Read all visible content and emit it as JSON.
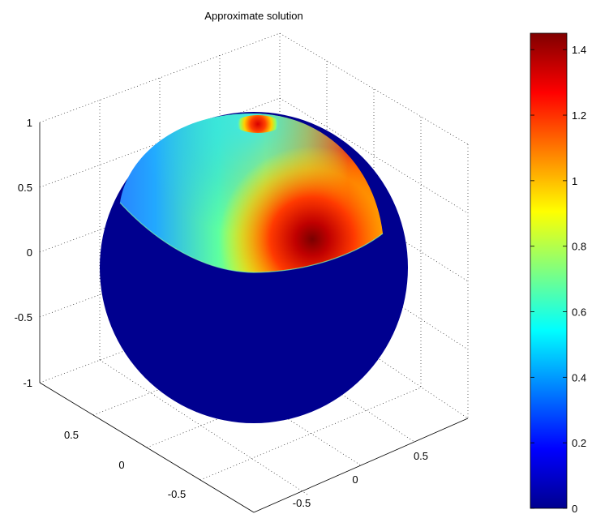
{
  "chart_data": {
    "type": "surface",
    "title": "Approximate solution",
    "surface": "unit sphere",
    "cut_plane_z": 0.0,
    "colormap": "jet",
    "axes": {
      "x": {
        "ticks": [
          "0.5",
          "0",
          "-0.5"
        ],
        "range": [
          -1,
          1
        ]
      },
      "y": {
        "ticks": [
          "-0.5",
          "0",
          "0.5"
        ],
        "range": [
          -1,
          1
        ]
      },
      "z": {
        "ticks": [
          "1",
          "0.5",
          "0",
          "-0.5",
          "-1"
        ],
        "range": [
          -1,
          1
        ]
      }
    },
    "grid": true,
    "colorbar": {
      "location": "right",
      "range": [
        0,
        1.45
      ],
      "ticks": [
        "1.4",
        "1.2",
        "1",
        "0.8",
        "0.6",
        "0.4",
        "0.2",
        "0"
      ]
    },
    "features": [
      {
        "description": "upper hemisphere colored by solution, maximum ~1.45 near front-right just above equator"
      },
      {
        "description": "small hot spot (~1.3) at the north pole"
      },
      {
        "description": "lower hemisphere value 0"
      }
    ]
  }
}
